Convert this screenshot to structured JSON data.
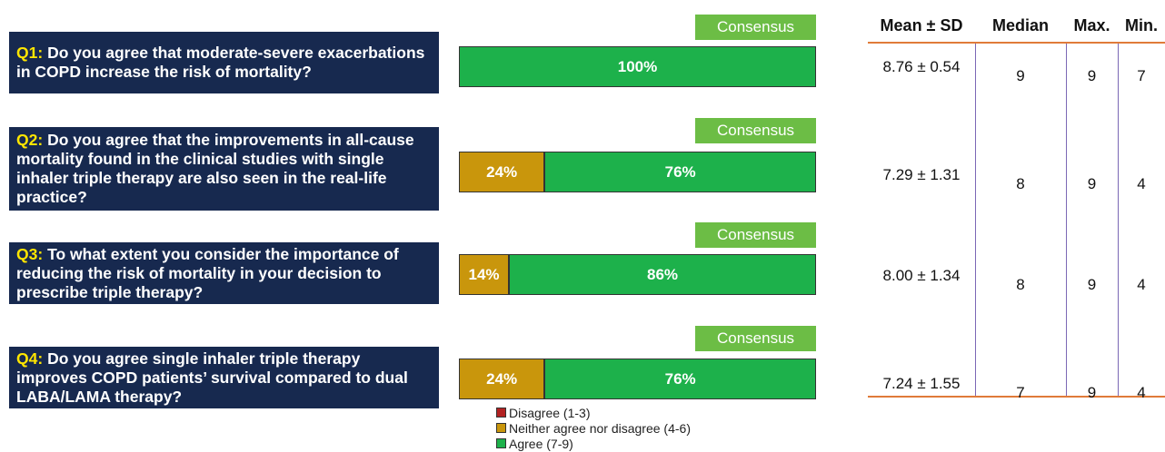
{
  "chart_data": {
    "type": "bar",
    "orientation": "horizontal",
    "stacked": true,
    "categories": [
      "Q1:",
      "Q2:",
      "Q3:",
      "Q4:"
    ],
    "questions": [
      "Do you agree that moderate-severe exacerbations in COPD increase the risk of mortality?",
      "Do you agree that the improvements in all-cause mortality found in the clinical studies with single inhaler triple therapy are also seen in the real-life practice?",
      "To what extent you consider the importance of reducing the risk of mortality in your decision to prescribe triple therapy?",
      "Do you agree single inhaler triple therapy improves COPD patients’ survival compared to dual LABA/LAMA therapy?"
    ],
    "consensus_labels": [
      "Consensus",
      "Consensus",
      "Consensus",
      "Consensus"
    ],
    "xlim": [
      0,
      100
    ],
    "series": [
      {
        "name": "Disagree (1-3)",
        "color": "#b22222",
        "values": [
          0,
          0,
          0,
          0
        ],
        "value_labels": [
          null,
          null,
          null,
          null
        ]
      },
      {
        "name": "Neither agree nor disagree (4-6)",
        "color": "#c9960c",
        "values": [
          0,
          24,
          14,
          24
        ],
        "value_labels": [
          null,
          "24%",
          "14%",
          "24%"
        ]
      },
      {
        "name": "Agree (7-9)",
        "color": "#1db14b",
        "values": [
          100,
          76,
          86,
          76
        ],
        "value_labels": [
          "100%",
          "76%",
          "86%",
          "76%"
        ]
      }
    ],
    "table": {
      "headers": [
        "Mean ± SD",
        "Median",
        "Max.",
        "Min."
      ],
      "rows": [
        [
          "8.76 ± 0.54",
          "9",
          "9",
          "7"
        ],
        [
          "7.29 ± 1.31",
          "8",
          "9",
          "4"
        ],
        [
          "8.00 ± 1.34",
          "8",
          "9",
          "4"
        ],
        [
          "7.24 ± 1.55",
          "7",
          "9",
          "4"
        ]
      ]
    }
  }
}
